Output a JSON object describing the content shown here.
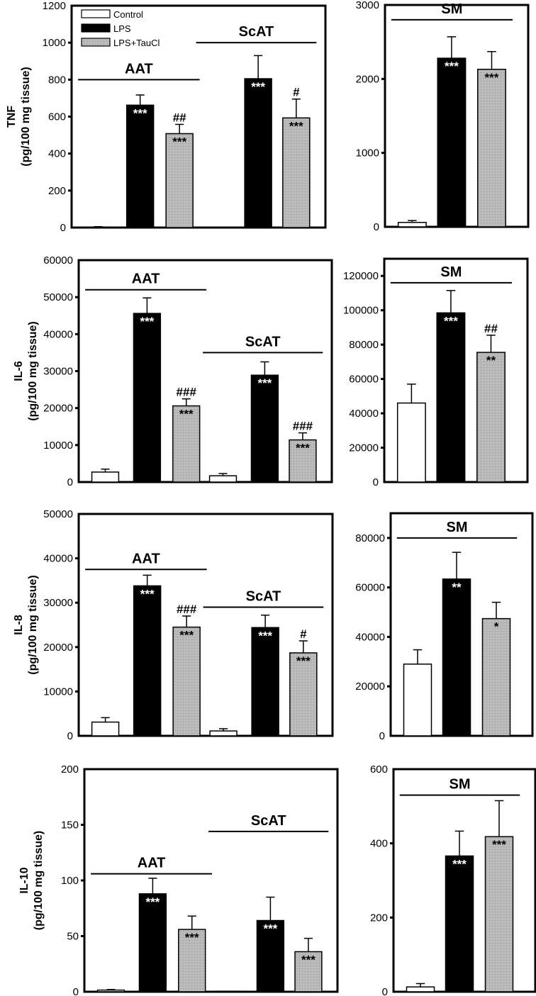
{
  "chart_data": {
    "type": "bar",
    "legend": {
      "placement": "top-left of first panel",
      "entries": [
        {
          "label": "Control",
          "color": "#ffffff"
        },
        {
          "label": "LPS",
          "color": "#000000"
        },
        {
          "label": "LPS+TauCl",
          "color": "#b4b4b4"
        }
      ]
    },
    "series_names": [
      "Control",
      "LPS",
      "LPS+TauCl"
    ],
    "panels": [
      {
        "id": "tnf-adipose",
        "row": 0,
        "col": 0,
        "ylabel_line1": "TNF",
        "ylabel_line2": "(pg/100 mg tissue)",
        "ylim": [
          0,
          1200
        ],
        "yticks": [
          0,
          200,
          400,
          600,
          800,
          1000,
          1200
        ],
        "show_legend": true,
        "groups": [
          {
            "label": "AAT",
            "label_value": 800,
            "bars": [
              {
                "series": "Control",
                "value": 3,
                "error": 2,
                "sig": "",
                "hash": ""
              },
              {
                "series": "LPS",
                "value": 662,
                "error": 55,
                "sig": "***",
                "hash": ""
              },
              {
                "series": "LPS+TauCl",
                "value": 508,
                "error": 50,
                "sig": "***",
                "hash": "##"
              }
            ]
          },
          {
            "label": "ScAT",
            "label_value": 1000,
            "bars": [
              {
                "series": "Control",
                "value": 0,
                "error": 0,
                "sig": "",
                "hash": ""
              },
              {
                "series": "LPS",
                "value": 805,
                "error": 125,
                "sig": "***",
                "hash": ""
              },
              {
                "series": "LPS+TauCl",
                "value": 593,
                "error": 102,
                "sig": "***",
                "hash": "#"
              }
            ]
          }
        ]
      },
      {
        "id": "tnf-sm",
        "row": 0,
        "col": 1,
        "ylabel_line1": "",
        "ylabel_line2": "",
        "ylim": [
          0,
          3000
        ],
        "yticks": [
          0,
          1000,
          2000,
          3000
        ],
        "show_legend": false,
        "groups": [
          {
            "label": "SM",
            "label_value": 2800,
            "bars": [
              {
                "series": "Control",
                "value": 60,
                "error": 25,
                "sig": "",
                "hash": ""
              },
              {
                "series": "LPS",
                "value": 2280,
                "error": 290,
                "sig": "***",
                "hash": ""
              },
              {
                "series": "LPS+TauCl",
                "value": 2130,
                "error": 240,
                "sig": "***",
                "hash": ""
              }
            ]
          }
        ]
      },
      {
        "id": "il6-adipose",
        "row": 1,
        "col": 0,
        "ylabel_line1": "IL-6",
        "ylabel_line2": "(pg/100 mg tissue)",
        "ylim": [
          0,
          60000
        ],
        "yticks": [
          0,
          10000,
          20000,
          30000,
          40000,
          50000,
          60000
        ],
        "show_legend": false,
        "groups": [
          {
            "label": "AAT",
            "label_value": 52000,
            "bars": [
              {
                "series": "Control",
                "value": 2700,
                "error": 800,
                "sig": "",
                "hash": ""
              },
              {
                "series": "LPS",
                "value": 45600,
                "error": 4200,
                "sig": "***",
                "hash": ""
              },
              {
                "series": "LPS+TauCl",
                "value": 20600,
                "error": 1900,
                "sig": "***",
                "hash": "###"
              }
            ]
          },
          {
            "label": "ScAT",
            "label_value": 35000,
            "bars": [
              {
                "series": "Control",
                "value": 1700,
                "error": 600,
                "sig": "",
                "hash": ""
              },
              {
                "series": "LPS",
                "value": 28900,
                "error": 3600,
                "sig": "***",
                "hash": ""
              },
              {
                "series": "LPS+TauCl",
                "value": 11400,
                "error": 1900,
                "sig": "***",
                "hash": "###"
              }
            ]
          }
        ]
      },
      {
        "id": "il6-sm",
        "row": 1,
        "col": 1,
        "ylabel_line1": "",
        "ylabel_line2": "",
        "ylim": [
          0,
          130000
        ],
        "yticks": [
          0,
          20000,
          40000,
          60000,
          80000,
          100000,
          120000
        ],
        "show_legend": false,
        "groups": [
          {
            "label": "SM",
            "label_value": 116000,
            "bars": [
              {
                "series": "Control",
                "value": 46000,
                "error": 11000,
                "sig": "",
                "hash": ""
              },
              {
                "series": "LPS",
                "value": 98500,
                "error": 13000,
                "sig": "***",
                "hash": ""
              },
              {
                "series": "LPS+TauCl",
                "value": 75500,
                "error": 10000,
                "sig": "**",
                "hash": "##"
              }
            ]
          }
        ]
      },
      {
        "id": "il8-adipose",
        "row": 2,
        "col": 0,
        "ylabel_line1": "IL-8",
        "ylabel_line2": "(pg/100 mg tissue)",
        "ylim": [
          0,
          50000
        ],
        "yticks": [
          0,
          10000,
          20000,
          30000,
          40000,
          50000
        ],
        "show_legend": false,
        "groups": [
          {
            "label": "AAT",
            "label_value": 37500,
            "bars": [
              {
                "series": "Control",
                "value": 3100,
                "error": 1000,
                "sig": "",
                "hash": ""
              },
              {
                "series": "LPS",
                "value": 33800,
                "error": 2400,
                "sig": "***",
                "hash": ""
              },
              {
                "series": "LPS+TauCl",
                "value": 24500,
                "error": 2500,
                "sig": "***",
                "hash": "###"
              }
            ]
          },
          {
            "label": "ScAT",
            "label_value": 29000,
            "bars": [
              {
                "series": "Control",
                "value": 1100,
                "error": 500,
                "sig": "",
                "hash": ""
              },
              {
                "series": "LPS",
                "value": 24400,
                "error": 2800,
                "sig": "***",
                "hash": ""
              },
              {
                "series": "LPS+TauCl",
                "value": 18700,
                "error": 2700,
                "sig": "***",
                "hash": "#"
              }
            ]
          }
        ]
      },
      {
        "id": "il8-sm",
        "row": 2,
        "col": 1,
        "ylabel_line1": "",
        "ylabel_line2": "",
        "ylim": [
          0,
          90000
        ],
        "yticks": [
          0,
          20000,
          40000,
          60000,
          80000
        ],
        "show_legend": false,
        "groups": [
          {
            "label": "SM",
            "label_value": 80000,
            "bars": [
              {
                "series": "Control",
                "value": 29000,
                "error": 5800,
                "sig": "",
                "hash": ""
              },
              {
                "series": "LPS",
                "value": 63400,
                "error": 10800,
                "sig": "**",
                "hash": ""
              },
              {
                "series": "LPS+TauCl",
                "value": 47400,
                "error": 6600,
                "sig": "*",
                "hash": ""
              }
            ]
          }
        ]
      },
      {
        "id": "il10-adipose",
        "row": 3,
        "col": 0,
        "ylabel_line1": "IL-10",
        "ylabel_line2": "(pg/100 mg tissue)",
        "ylim": [
          0,
          200
        ],
        "yticks": [
          0,
          50,
          100,
          150,
          200
        ],
        "show_legend": false,
        "groups": [
          {
            "label": "AAT",
            "label_value": 106,
            "bars": [
              {
                "series": "Control",
                "value": 1.5,
                "error": 0.5,
                "sig": "",
                "hash": ""
              },
              {
                "series": "LPS",
                "value": 88,
                "error": 14,
                "sig": "***",
                "hash": ""
              },
              {
                "series": "LPS+TauCl",
                "value": 56,
                "error": 12,
                "sig": "***",
                "hash": ""
              }
            ]
          },
          {
            "label": "ScAT",
            "label_value": 144,
            "bars": [
              {
                "series": "Control",
                "value": 0.5,
                "error": 0,
                "sig": "",
                "hash": ""
              },
              {
                "series": "LPS",
                "value": 64,
                "error": 21,
                "sig": "***",
                "hash": ""
              },
              {
                "series": "LPS+TauCl",
                "value": 36,
                "error": 12,
                "sig": "***",
                "hash": ""
              }
            ]
          }
        ]
      },
      {
        "id": "il10-sm",
        "row": 3,
        "col": 1,
        "ylabel_line1": "",
        "ylabel_line2": "",
        "ylim": [
          0,
          600
        ],
        "yticks": [
          0,
          200,
          400,
          600
        ],
        "show_legend": false,
        "groups": [
          {
            "label": "SM",
            "label_value": 530,
            "bars": [
              {
                "series": "Control",
                "value": 13,
                "error": 9,
                "sig": "",
                "hash": ""
              },
              {
                "series": "LPS",
                "value": 366,
                "error": 67,
                "sig": "***",
                "hash": ""
              },
              {
                "series": "LPS+TauCl",
                "value": 418,
                "error": 97,
                "sig": "***",
                "hash": ""
              }
            ]
          }
        ]
      }
    ]
  }
}
